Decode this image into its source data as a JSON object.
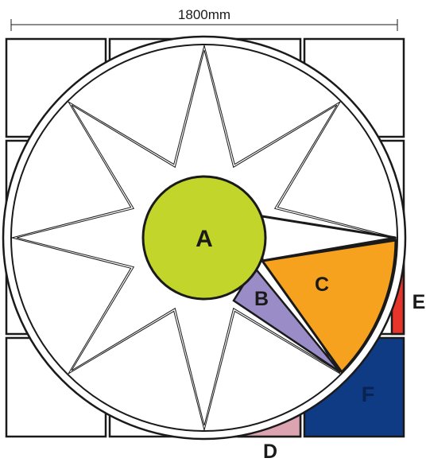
{
  "dimension": {
    "text": "1800mm"
  },
  "colors": {
    "line": "#1a1a1a",
    "A": "#c2d52a",
    "B": "#9a8cc6",
    "C": "#f6a21e",
    "D": "#dca3b1",
    "E": "#e8352b",
    "F": "#0f3b85"
  },
  "labels": {
    "A": "A",
    "B": "B",
    "C": "C",
    "D": "D",
    "E": "E",
    "F": "F"
  }
}
